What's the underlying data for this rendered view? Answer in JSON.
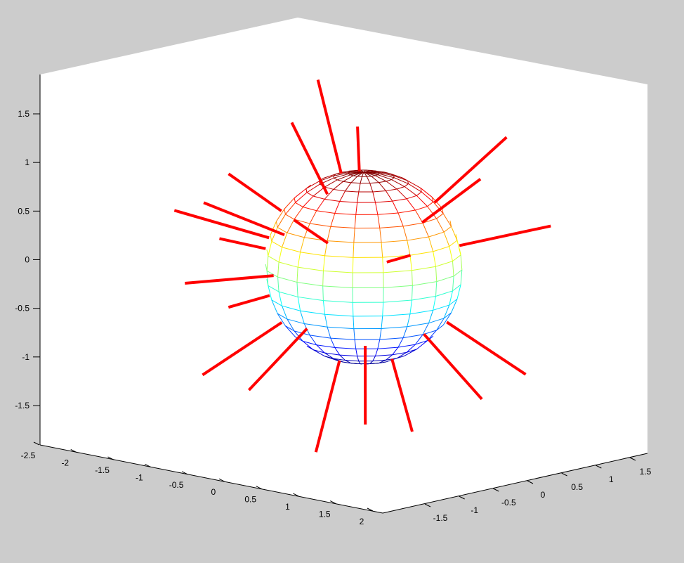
{
  "chart_data": {
    "type": "3d-mesh-with-lines",
    "title": "",
    "background_color": "#cccccc",
    "axes_color": "#ffffff",
    "line_color": "#ff0000",
    "colormap": "jet",
    "view": {
      "azimuth": -37.5,
      "elevation": 30
    },
    "x_axis": {
      "label": "",
      "ticks": [
        "-2.5",
        "-2",
        "-1.5",
        "-1",
        "-0.5",
        "0",
        "0.5",
        "1",
        "1.5",
        "2"
      ],
      "tick_values": [
        -2.5,
        -2,
        -1.5,
        -1,
        -0.5,
        0,
        0.5,
        1,
        1.5,
        2
      ]
    },
    "y_axis": {
      "label": "",
      "ticks": [
        "-1.5",
        "-1",
        "-0.5",
        "0",
        "0.5",
        "1",
        "1.5"
      ],
      "tick_values": [
        -1.5,
        -1,
        -0.5,
        0,
        0.5,
        1,
        1.5
      ]
    },
    "z_axis": {
      "label": "",
      "ticks": [
        "1.5",
        "1",
        "0.5",
        "0",
        "-0.5",
        "-1",
        "-1.5"
      ],
      "tick_values": [
        1.5,
        1,
        0.5,
        0,
        -0.5,
        -1,
        -1.5
      ]
    },
    "sphere": {
      "radius": 1,
      "center": [
        0,
        0,
        0
      ],
      "segments": 20
    },
    "lines": [
      [
        [
          -0.31,
          0.0,
          0.94
        ],
        [
          -0.62,
          -0.01,
          1.88
        ]
      ],
      [
        [
          -0.18,
          0.13,
          0.96
        ],
        [
          -0.26,
          0.19,
          1.41
        ]
      ],
      [
        [
          -0.38,
          -0.13,
          0.73
        ],
        [
          -0.75,
          -0.26,
          1.45
        ]
      ],
      [
        [
          0.43,
          0.59,
          0.65
        ],
        [
          0.87,
          1.19,
          1.31
        ]
      ],
      [
        [
          0.37,
          0.47,
          0.45
        ],
        [
          0.74,
          0.94,
          0.89
        ]
      ],
      [
        [
          -0.7,
          -0.47,
          0.56
        ],
        [
          -1.15,
          -0.77,
          0.93
        ]
      ],
      [
        [
          -0.64,
          -0.49,
          0.32
        ],
        [
          -1.29,
          -0.99,
          0.64
        ]
      ],
      [
        [
          -0.75,
          -0.6,
          0.29
        ],
        [
          -1.5,
          -1.2,
          0.56
        ]
      ],
      [
        [
          -0.3,
          -0.21,
          0.24
        ],
        [
          -0.59,
          -0.4,
          0.47
        ]
      ],
      [
        [
          -0.76,
          -0.64,
          0.18
        ],
        [
          -1.12,
          -0.94,
          0.28
        ]
      ],
      [
        [
          0.68,
          0.69,
          0.22
        ],
        [
          1.33,
          1.35,
          0.42
        ]
      ],
      [
        [
          0.16,
          0.17,
          0.05
        ],
        [
          0.33,
          0.34,
          0.12
        ]
      ],
      [
        [
          -0.66,
          -0.63,
          -0.09
        ],
        [
          -1.31,
          -1.25,
          -0.17
        ]
      ],
      [
        [
          -0.66,
          -0.69,
          -0.29
        ],
        [
          -0.95,
          -0.99,
          -0.41
        ]
      ],
      [
        [
          -0.53,
          -0.65,
          -0.56
        ],
        [
          -1.04,
          -1.28,
          -1.09
        ]
      ],
      [
        [
          -0.33,
          -0.49,
          -0.62
        ],
        [
          -0.67,
          -0.99,
          -1.24
        ]
      ],
      [
        [
          -0.04,
          -0.32,
          -0.94
        ],
        [
          -0.08,
          -0.63,
          -1.86
        ]
      ],
      [
        [
          0.13,
          -0.12,
          -0.79
        ],
        [
          0.25,
          -0.25,
          -1.58
        ]
      ],
      [
        [
          0.35,
          0.04,
          -0.92
        ],
        [
          0.61,
          0.06,
          -1.65
        ]
      ],
      [
        [
          0.55,
          0.3,
          -0.67
        ],
        [
          1.08,
          0.59,
          -1.32
        ]
      ],
      [
        [
          0.7,
          0.48,
          -0.55
        ],
        [
          1.37,
          0.93,
          -1.07
        ]
      ]
    ]
  }
}
